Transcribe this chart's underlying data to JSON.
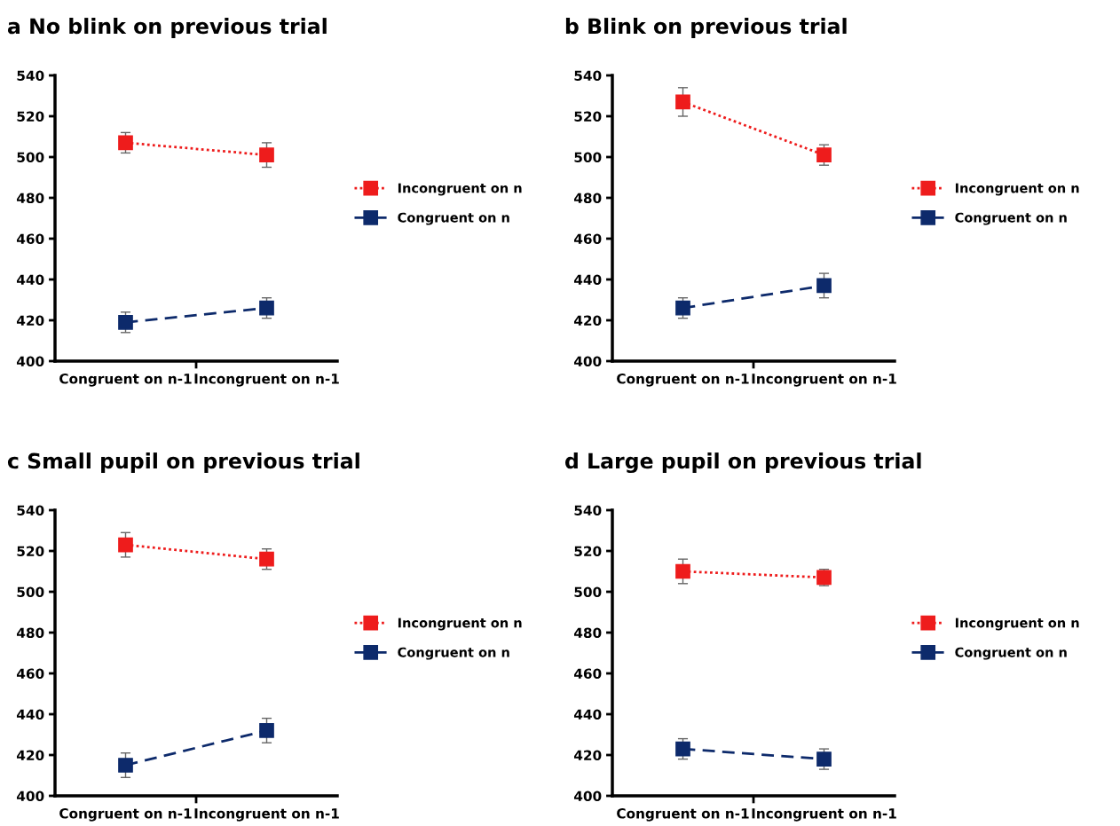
{
  "chart_data": [
    {
      "type": "line",
      "title": "a No blink on previous trial",
      "categories": [
        "Congruent on n-1",
        "Incongruent on n-1"
      ],
      "ylim": [
        400,
        540
      ],
      "yticks": [
        400,
        420,
        440,
        460,
        480,
        500,
        520,
        540
      ],
      "grid": false,
      "legend": "right",
      "marker": "square",
      "series": [
        {
          "name": "Incongruent on n",
          "color": "#ee1c1c",
          "line_style": "dotted",
          "values": [
            507,
            501
          ],
          "errors": [
            5,
            6
          ]
        },
        {
          "name": "Congruent on n",
          "color": "#0d2a6b",
          "line_style": "dashed",
          "values": [
            419,
            426
          ],
          "errors": [
            5,
            5
          ]
        }
      ]
    },
    {
      "type": "line",
      "title": "b Blink on previous trial",
      "categories": [
        "Congruent on n-1",
        "Incongruent on n-1"
      ],
      "ylim": [
        400,
        540
      ],
      "yticks": [
        400,
        420,
        440,
        460,
        480,
        500,
        520,
        540
      ],
      "grid": false,
      "legend": "right",
      "marker": "square",
      "series": [
        {
          "name": "Incongruent on n",
          "color": "#ee1c1c",
          "line_style": "dotted",
          "values": [
            527,
            501
          ],
          "errors": [
            7,
            5
          ]
        },
        {
          "name": "Congruent on n",
          "color": "#0d2a6b",
          "line_style": "dashed",
          "values": [
            426,
            437
          ],
          "errors": [
            5,
            6
          ]
        }
      ]
    },
    {
      "type": "line",
      "title": "c Small pupil on previous trial",
      "categories": [
        "Congruent on n-1",
        "Incongruent on n-1"
      ],
      "ylim": [
        400,
        540
      ],
      "yticks": [
        400,
        420,
        440,
        460,
        480,
        500,
        520,
        540
      ],
      "grid": false,
      "legend": "right",
      "marker": "square",
      "series": [
        {
          "name": "Incongruent on n",
          "color": "#ee1c1c",
          "line_style": "dotted",
          "values": [
            523,
            516
          ],
          "errors": [
            6,
            5
          ]
        },
        {
          "name": "Congruent on n",
          "color": "#0d2a6b",
          "line_style": "dashed",
          "values": [
            415,
            432
          ],
          "errors": [
            6,
            6
          ]
        }
      ]
    },
    {
      "type": "line",
      "title": "d Large pupil on previous trial",
      "categories": [
        "Congruent on n-1",
        "Incongruent on n-1"
      ],
      "ylim": [
        400,
        540
      ],
      "yticks": [
        400,
        420,
        440,
        460,
        480,
        500,
        520,
        540
      ],
      "grid": false,
      "legend": "right",
      "marker": "square",
      "series": [
        {
          "name": "Incongruent on n",
          "color": "#ee1c1c",
          "line_style": "dotted",
          "values": [
            510,
            507
          ],
          "errors": [
            6,
            4
          ]
        },
        {
          "name": "Congruent on n",
          "color": "#0d2a6b",
          "line_style": "dashed",
          "values": [
            423,
            418
          ],
          "errors": [
            5,
            5
          ]
        }
      ]
    }
  ]
}
